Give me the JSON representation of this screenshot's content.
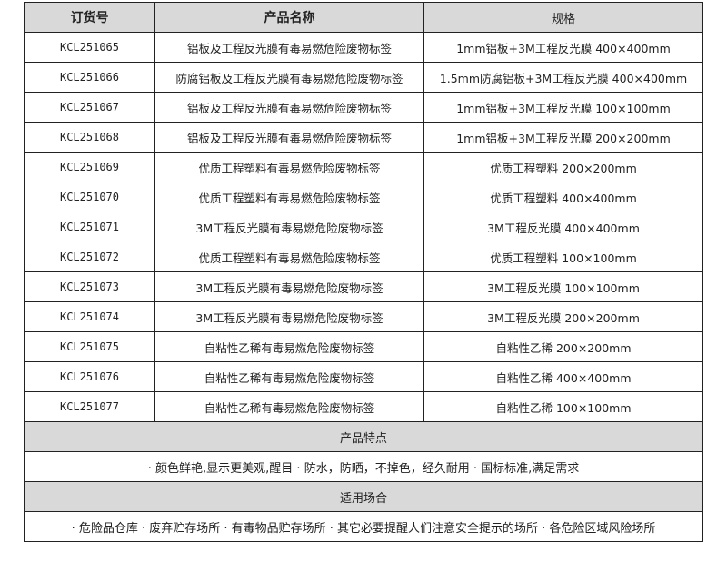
{
  "headers": [
    "订货号",
    "产品名称",
    "规格"
  ],
  "rows": [
    [
      "KCL251065",
      "铝板及工程反光膜有毒易燃危险废物标签",
      "1mm铝板+3M工程反光膜 400×400mm"
    ],
    [
      "KCL251066",
      "防腐铝板及工程反光膜有毒易燃危险废物标签",
      "1.5mm防腐铝板+3M工程反光膜 400×400mm"
    ],
    [
      "KCL251067",
      "铝板及工程反光膜有毒易燃危险废物标签",
      "1mm铝板+3M工程反光膜 100×100mm"
    ],
    [
      "KCL251068",
      "铝板及工程反光膜有毒易燃危险废物标签",
      "1mm铝板+3M工程反光膜 200×200mm"
    ],
    [
      "KCL251069",
      "优质工程塑料有毒易燃危险废物标签",
      "优质工程塑料 200×200mm"
    ],
    [
      "KCL251070",
      "优质工程塑料有毒易燃危险废物标签",
      "优质工程塑料 400×400mm"
    ],
    [
      "KCL251071",
      "3M工程反光膜有毒易燃危险废物标签",
      "3M工程反光膜 400×400mm"
    ],
    [
      "KCL251072",
      "优质工程塑料有毒易燃危险废物标签",
      "优质工程塑料 100×100mm"
    ],
    [
      "KCL251073",
      "3M工程反光膜有毒易燃危险废物标签",
      "3M工程反光膜 100×100mm"
    ],
    [
      "KCL251074",
      "3M工程反光膜有毒易燃危险废物标签",
      "3M工程反光膜 200×200mm"
    ],
    [
      "KCL251075",
      "自粘性乙稀有毒易燃危险废物标签",
      "自粘性乙稀 200×200mm"
    ],
    [
      "KCL251076",
      "自粘性乙稀有毒易燃危险废物标签",
      "自粘性乙稀 400×400mm"
    ],
    [
      "KCL251077",
      "自粘性乙稀有毒易燃危险废物标签",
      "自粘性乙稀 100×100mm"
    ]
  ],
  "features": {
    "title": "产品特点",
    "text": "· 颜色鲜艳,显示更美观,醒目 · 防水，防晒，不掉色，经久耐用 · 国标标准,满足需求"
  },
  "usage": {
    "title": "适用场合",
    "text": "· 危险品仓库 · 废弃贮存场所 · 有毒物品贮存场所 · 其它必要提醒人们注意安全提示的场所 · 各危险区域风险场所"
  }
}
